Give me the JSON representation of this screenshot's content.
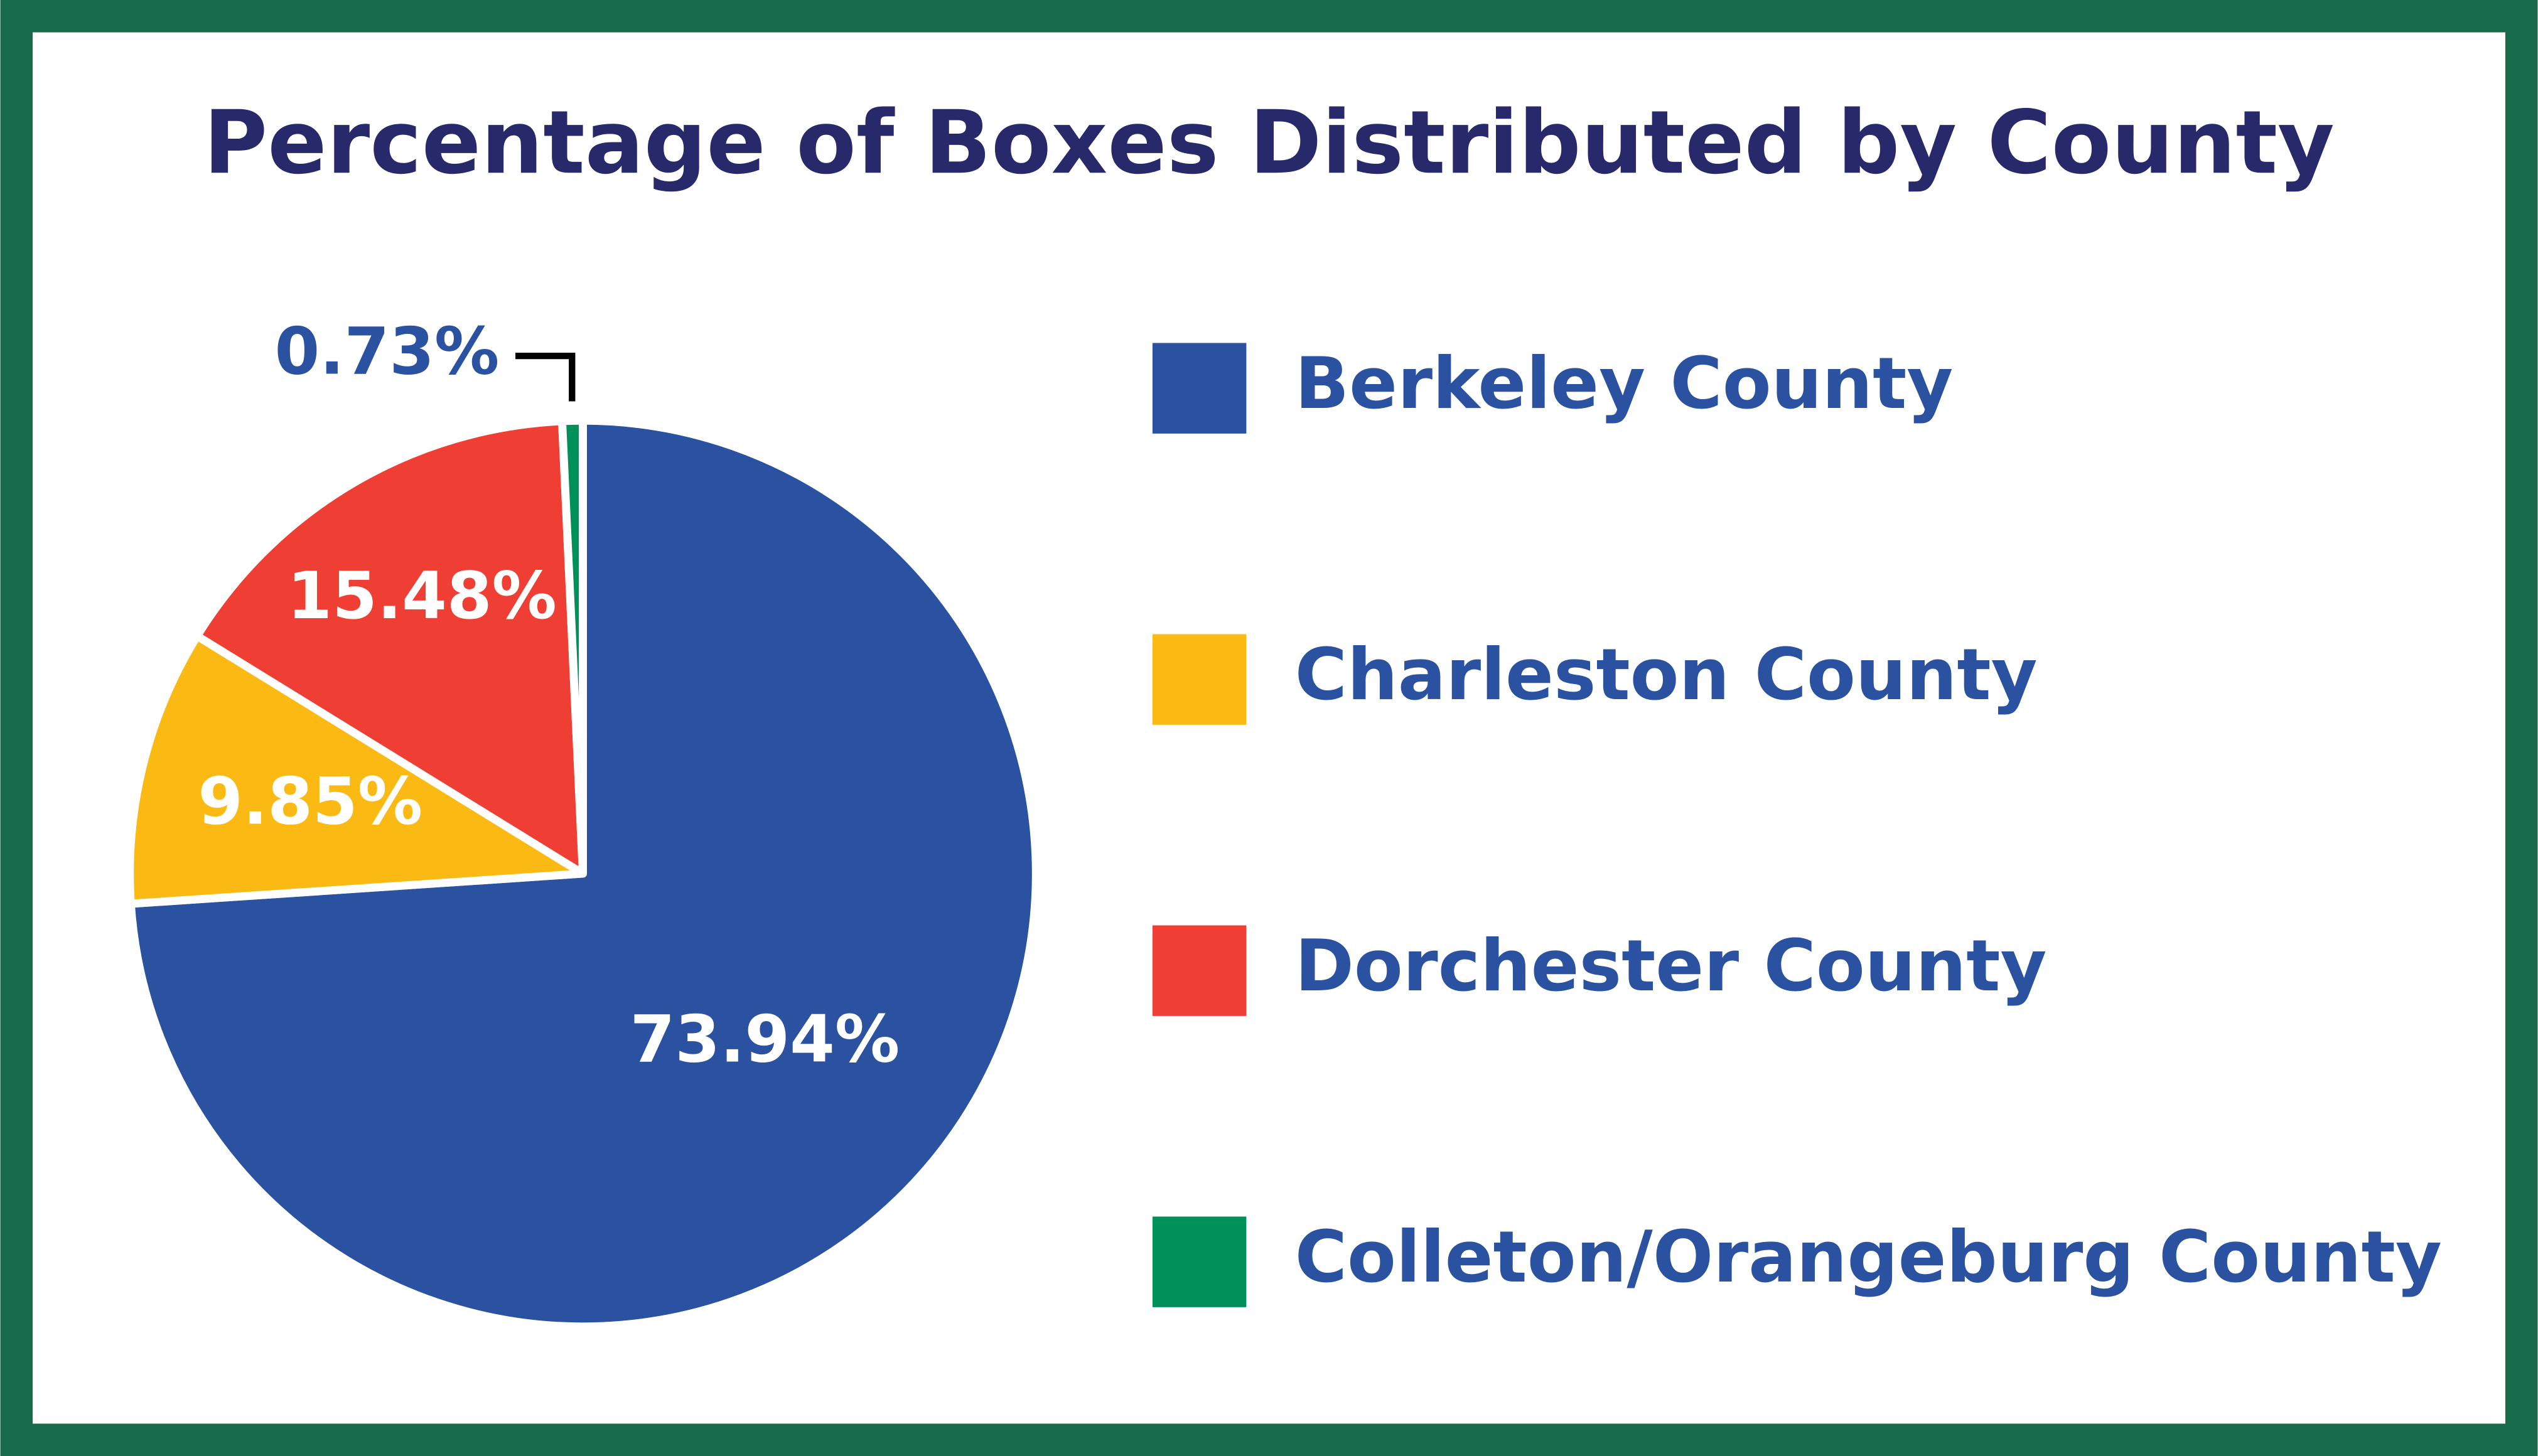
{
  "chart_data": {
    "type": "pie",
    "title": "Percentage of Boxes Distributed by County",
    "categories": [
      "Berkeley County",
      "Charleston County",
      "Dorchester County",
      "Colleton/Orangeburg County"
    ],
    "values": [
      73.94,
      9.85,
      15.48,
      0.73
    ],
    "value_labels": [
      "73.94%",
      "9.85%",
      "15.48%",
      "0.73%"
    ],
    "colors": [
      "#2a52a0",
      "#fbb914",
      "#ef3e33",
      "#00915a"
    ],
    "legend": "right"
  }
}
